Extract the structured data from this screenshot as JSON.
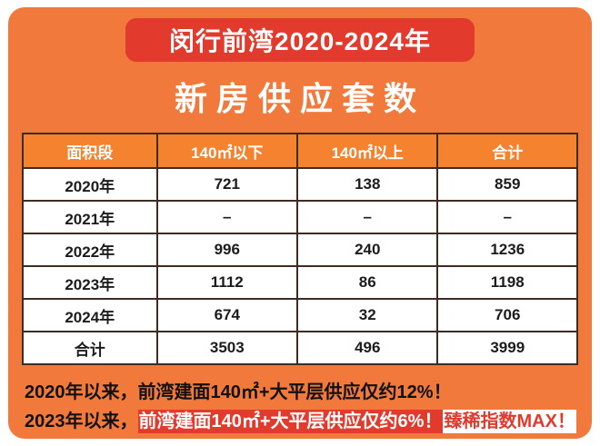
{
  "banner": {
    "title": "闵行前湾2020-2024年"
  },
  "subtitle": "新房供应套数",
  "table": {
    "headers": [
      "面积段",
      "140㎡以下",
      "140㎡以上",
      "合计"
    ],
    "rows": [
      {
        "label": "2020年",
        "values": [
          "721",
          "138",
          "859"
        ]
      },
      {
        "label": "2021年",
        "values": [
          "–",
          "–",
          "–"
        ]
      },
      {
        "label": "2022年",
        "values": [
          "996",
          "240",
          "1236"
        ]
      },
      {
        "label": "2023年",
        "values": [
          "1112",
          "86",
          "1198"
        ]
      },
      {
        "label": "2024年",
        "values": [
          "674",
          "32",
          "706"
        ]
      },
      {
        "label": "合计",
        "values": [
          "3503",
          "496",
          "3999"
        ]
      }
    ]
  },
  "footnotes": {
    "line1": "2020年以来，前湾建面140㎡+大平层供应仅约12%！",
    "line2_prefix": "2023年以来，",
    "line2_highlight": "前湾建面140㎡+大平层供应仅约6%！",
    "line2_suffix": "臻稀指数MAX！"
  },
  "colors": {
    "card_background": "#f1793c",
    "banner_red": "#e23a2c",
    "header_orange": "#f5822e",
    "grid_border": "#3d2c21",
    "cell_background": "#ffffff",
    "text_dark": "#111111",
    "text_white": "#ffffff"
  },
  "chart_data": {
    "type": "table",
    "title": "闵行前湾2020-2024年 新房供应套数",
    "columns": [
      "面积段",
      "140㎡以下",
      "140㎡以上",
      "合计"
    ],
    "rows": [
      [
        "2020年",
        721,
        138,
        859
      ],
      [
        "2021年",
        null,
        null,
        null
      ],
      [
        "2022年",
        996,
        240,
        1236
      ],
      [
        "2023年",
        1112,
        86,
        1198
      ],
      [
        "2024年",
        674,
        32,
        706
      ],
      [
        "合计",
        3503,
        496,
        3999
      ]
    ],
    "notes": [
      "2020年以来，前湾建面140㎡+大平层供应仅约12%！",
      "2023年以来，前湾建面140㎡+大平层供应仅约6%！臻稀指数MAX！"
    ]
  }
}
